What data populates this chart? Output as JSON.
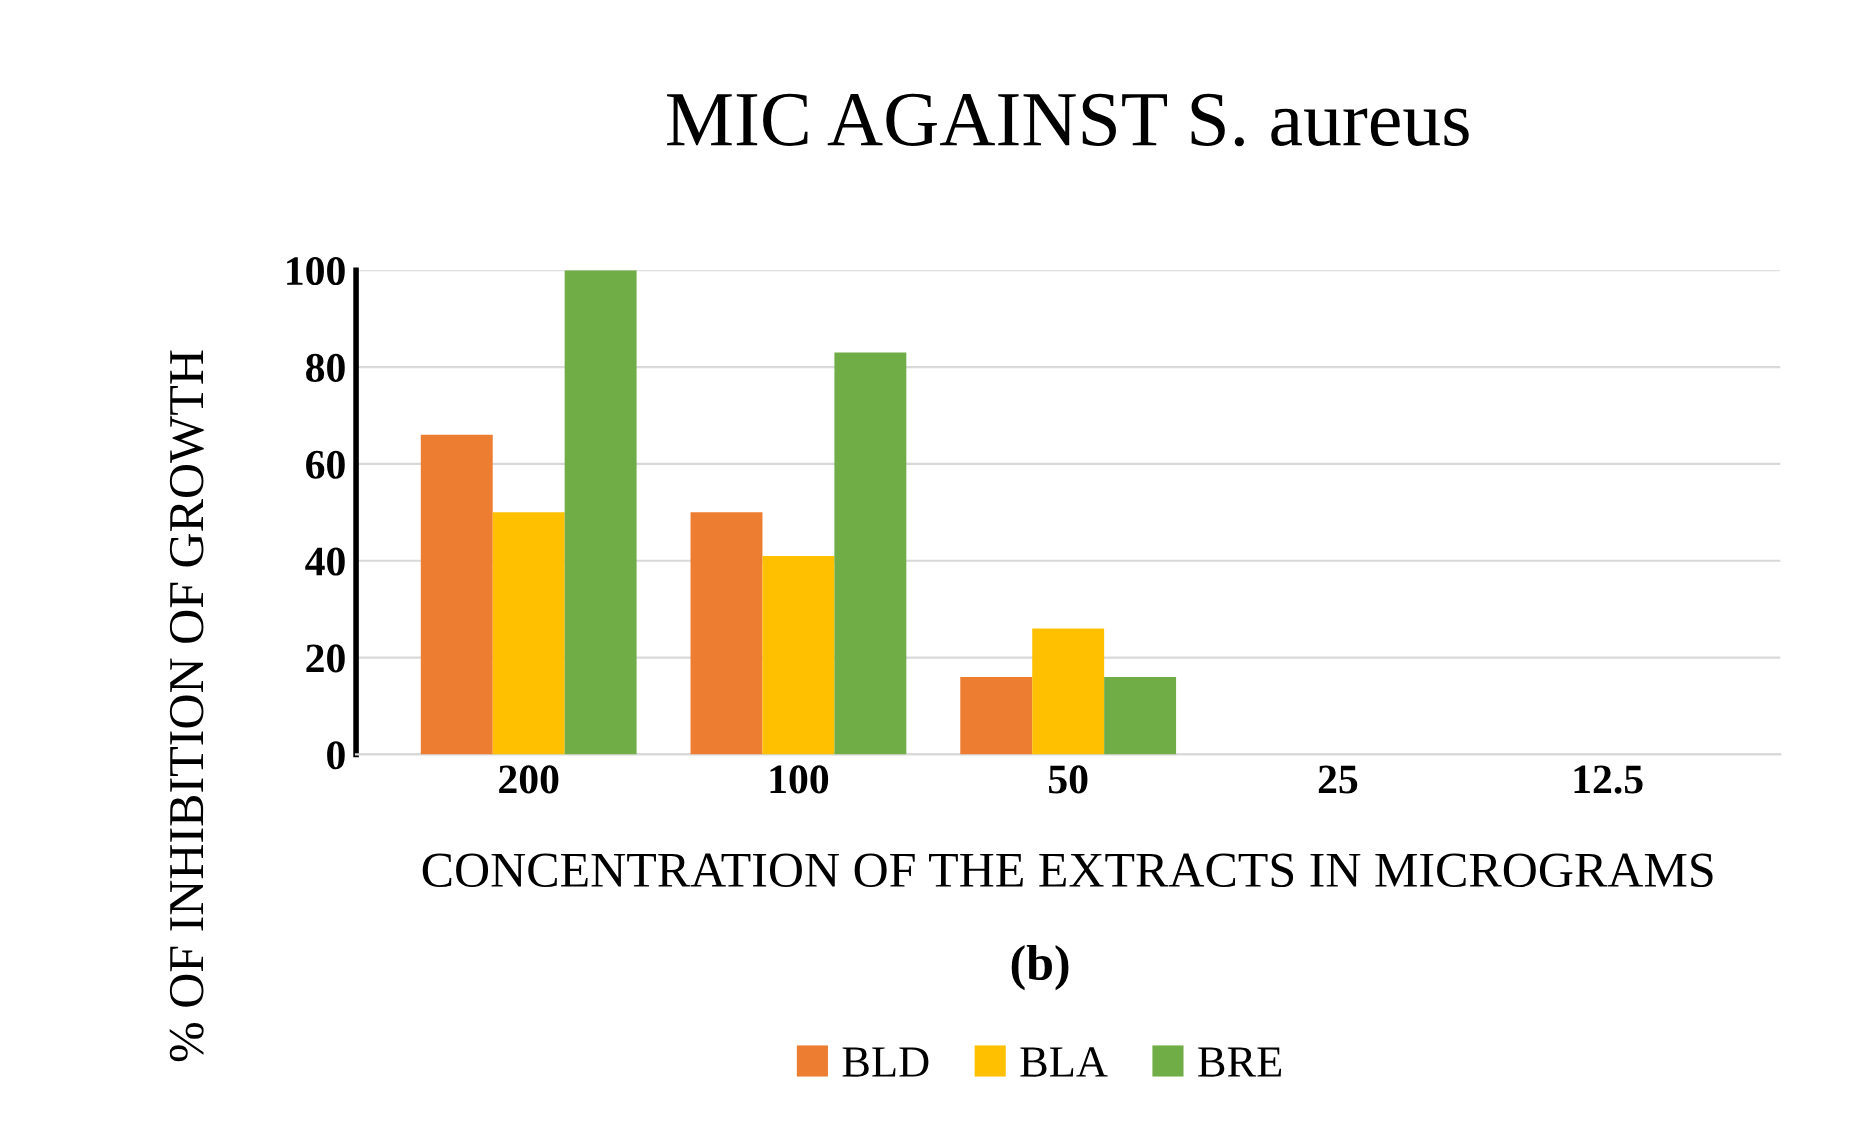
{
  "chart_data": {
    "type": "bar",
    "title": "MIC AGAINST S. aureus",
    "xlabel": "CONCENTRATION OF THE EXTRACTS IN MICROGRAMS",
    "ylabel": "% OF INHIBITION OF GROWTH",
    "annotations": [
      "(b)"
    ],
    "categories": [
      "200",
      "100",
      "50",
      "25",
      "12.5"
    ],
    "series": [
      {
        "name": "BLD",
        "color": "#ed7d31",
        "values": [
          66,
          50,
          16,
          0,
          0
        ]
      },
      {
        "name": "BLA",
        "color": "#ffc000",
        "values": [
          50,
          41,
          26,
          0,
          0
        ]
      },
      {
        "name": "BRE",
        "color": "#70ad47",
        "values": [
          100,
          83,
          16,
          0,
          0
        ]
      }
    ],
    "ylim": [
      0,
      100
    ],
    "yticks": [
      0,
      20,
      40,
      60,
      80,
      100
    ],
    "grid": "y",
    "legend": "bottom"
  }
}
